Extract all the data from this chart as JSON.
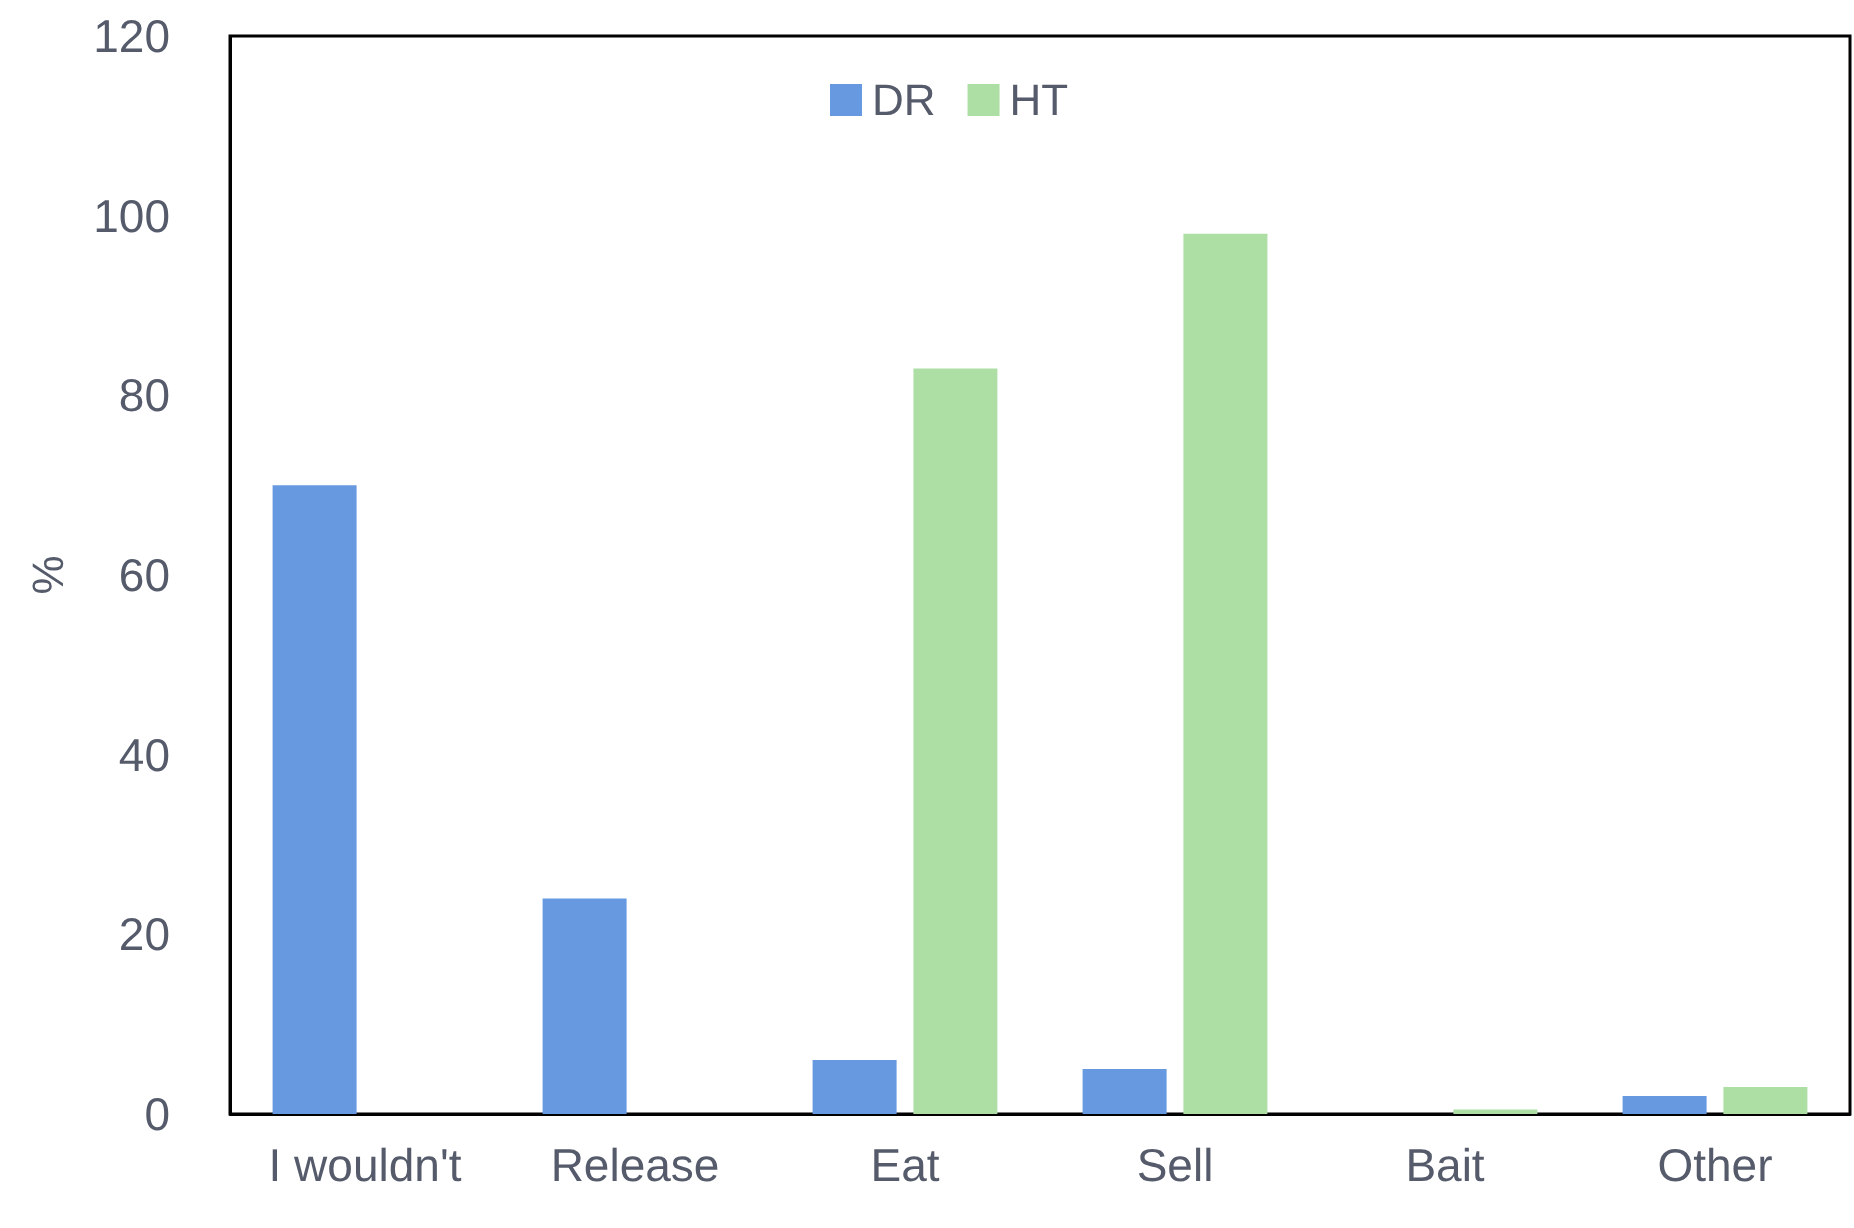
{
  "chart_data": {
    "type": "bar",
    "ylabel": "%",
    "categories": [
      "I wouldn't",
      "Release",
      "Eat",
      "Sell",
      "Bait",
      "Other"
    ],
    "series": [
      {
        "name": "DR",
        "color": "#6699e0",
        "values": [
          70,
          24,
          6,
          5,
          0,
          2
        ]
      },
      {
        "name": "HT",
        "color": "#addfa5",
        "values": [
          0,
          0,
          83,
          98,
          0.5,
          3
        ]
      }
    ],
    "ylim": [
      0,
      120
    ],
    "yticks": [
      0,
      20,
      40,
      60,
      80,
      100,
      120
    ],
    "grid": false,
    "legend": "top"
  }
}
